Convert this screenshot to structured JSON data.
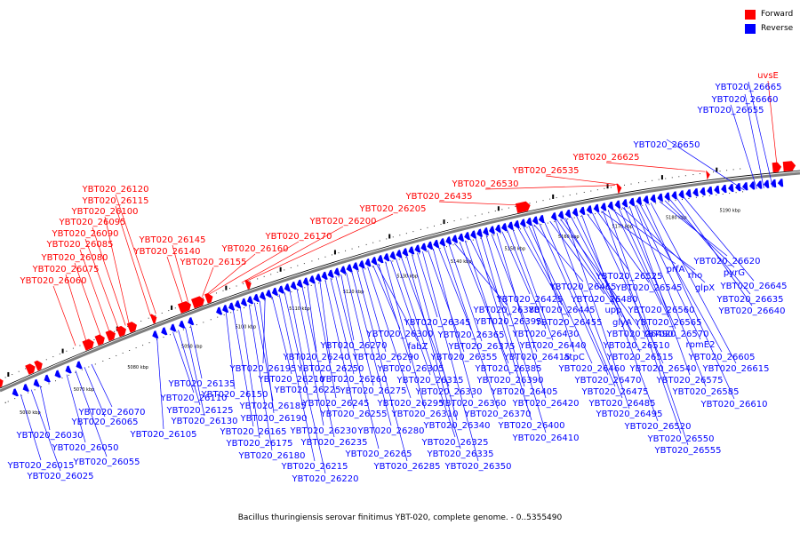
{
  "caption": "Bacillus thuringiensis serovar finitimus YBT-020, complete genome. - 0..5355490",
  "legend": [
    {
      "label": "Forward",
      "color": "#ff0000"
    },
    {
      "label": "Reverse",
      "color": "#0000ff"
    }
  ],
  "colors": {
    "forward": "#ff0000",
    "reverse": "#0000ff",
    "backbone": "#7f7f7f"
  },
  "kbp_ticks": [
    "5060 kbp",
    "5070 kbp",
    "5080 kbp",
    "5090 kbp",
    "5100 kbp",
    "5110 kbp",
    "5120 kbp",
    "5130 kbp",
    "5140 kbp",
    "5150 kbp",
    "5160 kbp",
    "5170 kbp",
    "5180 kbp",
    "5190 kbp"
  ],
  "forward_labels": [
    "uvsE",
    "YBT020_26625",
    "YBT020_26535",
    "YBT020_26530",
    "YBT020_26435",
    "YBT020_26205",
    "YBT020_26200",
    "YBT020_26170",
    "YBT020_26160",
    "YBT020_26155",
    "YBT020_26145",
    "YBT020_26140",
    "YBT020_26120",
    "YBT020_26115",
    "YBT020_26100",
    "YBT020_26095",
    "YBT020_26090",
    "YBT020_26085",
    "YBT020_26080",
    "YBT020_26075",
    "YBT020_26060"
  ],
  "reverse_labels": [
    "YBT020_26665",
    "YBT020_26660",
    "YBT020_26655",
    "YBT020_26650",
    "YBT020_26015",
    "YBT020_26025",
    "YBT020_26030",
    "YBT020_26050",
    "YBT020_26055",
    "YBT020_26065",
    "YBT020_26070",
    "YBT020_26105",
    "YBT020_26110",
    "YBT020_26125",
    "YBT020_26130",
    "YBT020_26135",
    "YBT020_26150",
    "YBT020_26165",
    "YBT020_26175",
    "YBT020_26180",
    "YBT020_26185",
    "YBT020_26190",
    "YBT020_26195",
    "YBT020_26210",
    "YBT020_26215",
    "YBT020_26220",
    "YBT020_26225",
    "YBT020_26230",
    "YBT020_26235",
    "YBT020_26240",
    "YBT020_26245",
    "YBT020_26250",
    "YBT020_26255",
    "YBT020_26260",
    "YBT020_26265",
    "YBT020_26270",
    "YBT020_26275",
    "YBT020_26280",
    "YBT020_26285",
    "YBT020_26290",
    "YBT020_26295",
    "YBT020_26300",
    "YBT020_26305",
    "YBT020_26310",
    "YBT020_26315",
    "YBT020_26325",
    "YBT020_26330",
    "YBT020_26335",
    "YBT020_26340",
    "YBT020_26345",
    "YBT020_26350",
    "YBT020_26355",
    "YBT020_26360",
    "YBT020_26365",
    "YBT020_26370",
    "YBT020_26375",
    "YBT020_26380",
    "YBT020_26385",
    "YBT020_26390",
    "YBT020_26395",
    "YBT020_26400",
    "YBT020_26405",
    "YBT020_26410",
    "YBT020_26415",
    "YBT020_26420",
    "YBT020_26425",
    "YBT020_26430",
    "YBT020_26440",
    "YBT020_26445",
    "YBT020_26455",
    "YBT020_26460",
    "YBT020_26465",
    "YBT020_26470",
    "YBT020_26475",
    "YBT020_26480",
    "YBT020_26485",
    "YBT020_26490",
    "YBT020_26495",
    "YBT020_26510",
    "YBT020_26515",
    "YBT020_26520",
    "YBT020_26525",
    "YBT020_26540",
    "YBT020_26545",
    "YBT020_26550",
    "YBT020_26555",
    "YBT020_26560",
    "YBT020_26565",
    "YBT020_26570",
    "YBT020_26575",
    "YBT020_26585",
    "YBT020_26605",
    "YBT020_26610",
    "YBT020_26615",
    "YBT020_26620",
    "YBT020_26635",
    "YBT020_26640",
    "YBT020_26645",
    "fabZ",
    "atpC",
    "upp",
    "glyA",
    "prfA",
    "rho",
    "glpX",
    "rpmE2",
    "pyrG"
  ]
}
